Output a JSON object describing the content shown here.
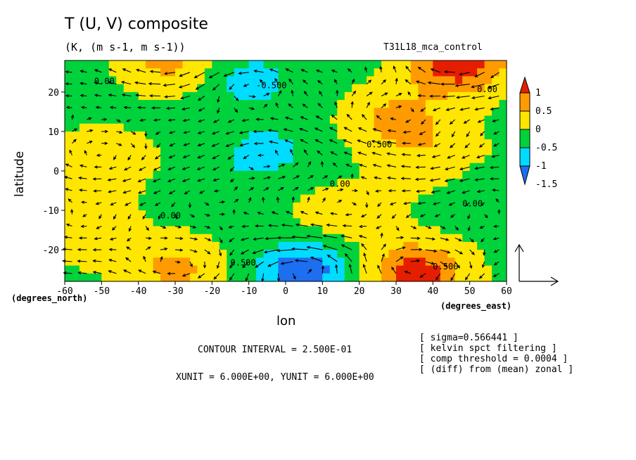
{
  "chart_data": {
    "type": "heatmap",
    "title": "T (U, V) composite",
    "subtitle": "(K, (m s-1, m s-1))",
    "run_label": "T31L18_mca_control",
    "xlabel": "lon",
    "ylabel": "latitude",
    "x_unit_label": "(degrees_east)",
    "y_unit_label": "(degrees_north)",
    "xlim": [
      -60,
      60
    ],
    "ylim": [
      -28,
      28
    ],
    "x_ticks": [
      -60,
      -50,
      -40,
      -30,
      -20,
      -10,
      0,
      10,
      20,
      30,
      40,
      50,
      60
    ],
    "x_tick_labels": [
      "-60",
      "-50",
      "-40",
      "-30",
      "-20",
      "-10",
      "0",
      "10",
      "20",
      "30",
      "40",
      "50",
      "60"
    ],
    "y_ticks": [
      -20,
      -10,
      0,
      10,
      20
    ],
    "y_tick_labels": [
      "-20",
      "-10",
      "0",
      "10",
      "20"
    ],
    "colorbar": {
      "levels": [
        -1.5,
        -1,
        -0.5,
        0,
        0.5,
        1
      ],
      "labels": [
        "-1.5",
        "-1",
        "-0.5",
        "0",
        "0.5",
        "1"
      ],
      "colors": [
        "#1e6ef0",
        "#00dcff",
        "#00d23c",
        "#ffe600",
        "#ff9b00",
        "#e61e00",
        "#1e6ef0"
      ]
    },
    "contour_labels": [
      {
        "lon": -52,
        "lat": 22,
        "text": "0.00"
      },
      {
        "lon": -8,
        "lat": 21,
        "text": "-0.500"
      },
      {
        "lon": 22,
        "lat": 6,
        "text": "0.500"
      },
      {
        "lon": 12,
        "lat": -4,
        "text": "0.00"
      },
      {
        "lon": -34,
        "lat": -12,
        "text": "0.00"
      },
      {
        "lon": 52,
        "lat": 20,
        "text": "0.00"
      },
      {
        "lon": 48,
        "lat": -9,
        "text": "0.00"
      },
      {
        "lon": 40,
        "lat": -25,
        "text": "0.500"
      },
      {
        "lon": -15,
        "lat": -24,
        "text": "0.500"
      }
    ],
    "field_centers": [
      {
        "lon": -30,
        "lat": 28,
        "value": 0.7
      },
      {
        "lon": -10,
        "lat": 23,
        "value": -1.0
      },
      {
        "lon": 47,
        "lat": 27,
        "value": 1.2
      },
      {
        "lon": 30,
        "lat": 13,
        "value": 0.6
      },
      {
        "lon": 40,
        "lat": 3,
        "value": 0.35
      },
      {
        "lon": -5,
        "lat": 5,
        "value": -0.9
      },
      {
        "lon": -50,
        "lat": 2,
        "value": 0.35
      },
      {
        "lon": -20,
        "lat": -5,
        "value": -0.5
      },
      {
        "lon": 55,
        "lat": -5,
        "value": -0.5
      },
      {
        "lon": 15,
        "lat": -12,
        "value": 0.3
      },
      {
        "lon": 5,
        "lat": -25,
        "value": -1.6
      },
      {
        "lon": 35,
        "lat": -26,
        "value": 1.2
      },
      {
        "lon": -30,
        "lat": -25,
        "value": 0.6
      },
      {
        "lon": -55,
        "lat": -15,
        "value": 0.3
      }
    ],
    "field_background": -0.3,
    "grid": false
  },
  "footer": {
    "contour_interval": "CONTOUR INTERVAL = 2.500E-01",
    "vector_units": "XUNIT = 6.000E+00, YUNIT = 6.000E+00"
  },
  "notes": [
    "[ sigma=0.566441 ]",
    "[ kelvin spct filtering ]",
    "[ comp threshold = 0.0004 ]",
    "[ (diff) from (mean) zonal ]"
  ]
}
